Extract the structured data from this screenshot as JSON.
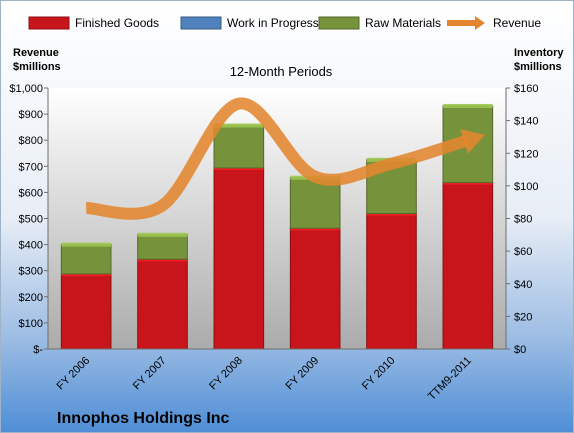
{
  "chart_data": {
    "type": "bar",
    "subtitle": "12-Month Periods",
    "company_name": "Innophos Holdings Inc",
    "left_axis_title": [
      "Revenue",
      "$millions"
    ],
    "right_axis_title": [
      "Inventory",
      "$millions"
    ],
    "categories": [
      "FY 2006",
      "FY 2007",
      "FY 2008",
      "FY 2009",
      "FY 2010",
      "TTM9-2011"
    ],
    "series": [
      {
        "name": "Finished Goods",
        "kind": "stacked-bar",
        "axis": "right",
        "color": "#c8151b",
        "values": [
          46,
          55,
          111,
          74,
          83,
          102
        ]
      },
      {
        "name": "Work in Progress",
        "kind": "stacked-bar",
        "axis": "right",
        "color": "#4f81bd",
        "values": [
          0,
          0,
          0,
          0,
          0,
          0
        ]
      },
      {
        "name": "Raw Materials",
        "kind": "stacked-bar",
        "axis": "right",
        "color": "#76933c",
        "values": [
          18,
          15,
          26,
          31,
          33,
          47
        ]
      },
      {
        "name": "Revenue",
        "kind": "line-arrow",
        "axis": "left",
        "color": "#e3862f",
        "values": [
          540,
          550,
          940,
          660,
          710,
          800
        ]
      }
    ],
    "left_axis": {
      "ylim": [
        0,
        1000
      ],
      "ticks": [
        0,
        100,
        200,
        300,
        400,
        500,
        600,
        700,
        800,
        900,
        1000
      ],
      "tick_labels": [
        "$-",
        "$100",
        "$200",
        "$300",
        "$400",
        "$500",
        "$600",
        "$700",
        "$800",
        "$900",
        "$1,000"
      ]
    },
    "right_axis": {
      "ylim": [
        0,
        160
      ],
      "ticks": [
        0,
        20,
        40,
        60,
        80,
        100,
        120,
        140,
        160
      ],
      "tick_labels": [
        "$0",
        "$20",
        "$40",
        "$60",
        "$80",
        "$100",
        "$120",
        "$140",
        "$160"
      ]
    },
    "legend_placement": "top",
    "grid": false
  }
}
